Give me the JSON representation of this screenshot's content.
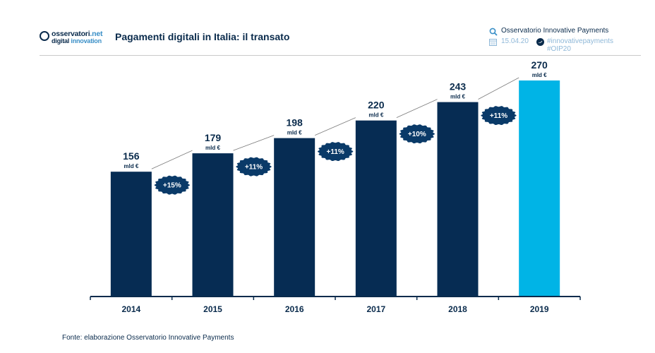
{
  "header": {
    "logo_line1_a": "osservatori",
    "logo_line1_b": ".net",
    "logo_line2_a": "digital",
    "logo_line2_b": " innovation",
    "title": "Pagamenti digitali in Italia: il transato",
    "org": "Osservatorio Innovative Payments",
    "date": "15.04.20",
    "hashtag1": "#innovativepayments",
    "hashtag2": "#OIP20"
  },
  "footer": {
    "source": "Fonte: elaborazione Osservatorio Innovative Payments"
  },
  "colors": {
    "dark_bar": "#062c53",
    "highlight_bar": "#00b4e6",
    "badge": "#0a3a68",
    "axis": "#0a2b4c",
    "text": "#0a2b4c"
  },
  "chart_data": {
    "type": "bar",
    "title": "",
    "xlabel": "",
    "ylabel": "",
    "ylim": [
      0,
      300
    ],
    "grid": false,
    "categories": [
      "2014",
      "2015",
      "2016",
      "2017",
      "2018",
      "2019"
    ],
    "values": [
      156,
      179,
      198,
      220,
      243,
      270
    ],
    "value_unit": "mld €",
    "highlight_category": "2019",
    "growth_labels": [
      "+15%",
      "+11%",
      "+11%",
      "+10%",
      "+11%"
    ]
  }
}
